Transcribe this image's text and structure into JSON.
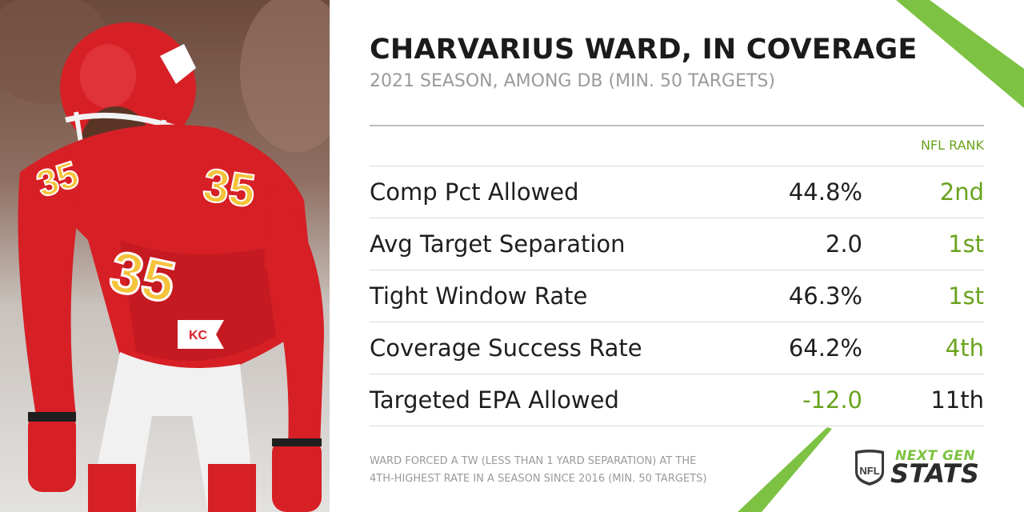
{
  "header": {
    "title": "CHARVARIUS WARD, IN COVERAGE",
    "subtitle": "2021 SEASON, AMONG DB (MIN. 50 TARGETS)"
  },
  "table": {
    "rank_header": "NFL RANK",
    "rows": [
      {
        "metric": "Comp Pct Allowed",
        "value": "44.8%",
        "rank": "2nd"
      },
      {
        "metric": "Avg Target Separation",
        "value": "2.0",
        "rank": "1st"
      },
      {
        "metric": "Tight Window Rate",
        "value": "46.3%",
        "rank": "1st"
      },
      {
        "metric": "Coverage Success Rate",
        "value": "64.2%",
        "rank": "4th"
      },
      {
        "metric": "Targeted EPA Allowed",
        "value": "-12.0",
        "rank": "11th"
      }
    ]
  },
  "footnote": {
    "line1": "WARD FORCED A TW (LESS THAN 1 YARD SEPARATION) AT THE",
    "line2": "4TH-HIGHEST RATE IN A SEASON SINCE 2016 (MIN. 50 TARGETS)"
  },
  "photo": {
    "jersey_number": "35"
  },
  "branding": {
    "shield_text": "NFL",
    "line1": "NEXT GEN",
    "line2": "STATS"
  },
  "colors": {
    "accent_green": "#6aa31e",
    "stripe_green": "#7dc242",
    "title_text": "#1b1b1b",
    "muted_text": "#9a9a9a",
    "jersey_red": "#d71f26"
  }
}
